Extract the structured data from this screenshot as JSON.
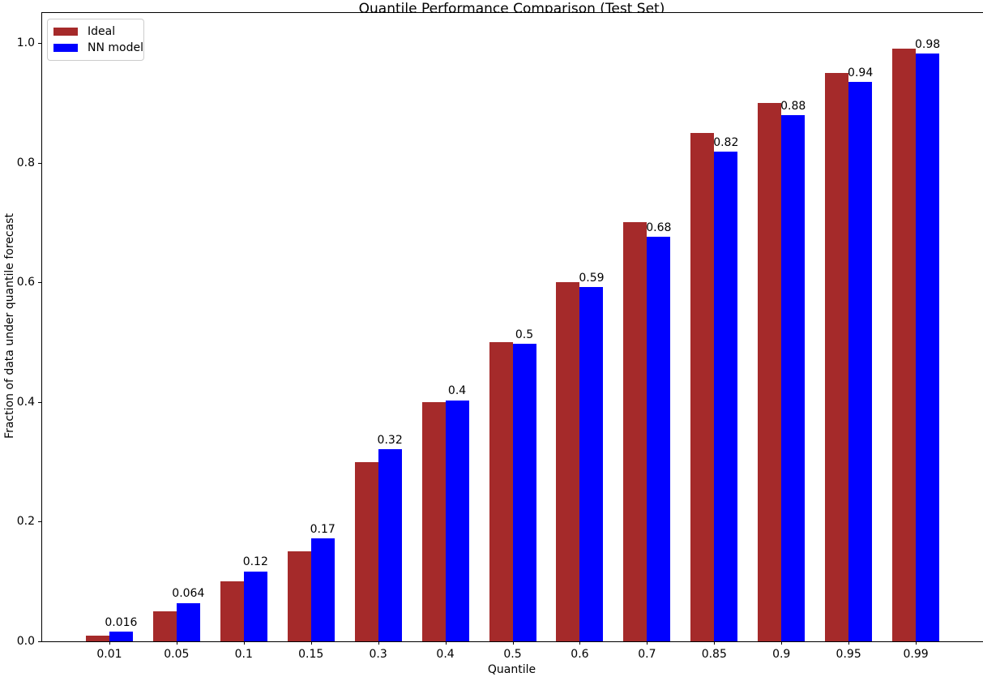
{
  "chart_data": {
    "type": "bar",
    "title": "Quantile Performance Comparison (Test Set)",
    "xlabel": "Quantile",
    "ylabel": "Fraction of data under quantile forecast",
    "categories": [
      "0.01",
      "0.05",
      "0.1",
      "0.15",
      "0.3",
      "0.4",
      "0.5",
      "0.6",
      "0.7",
      "0.85",
      "0.9",
      "0.95",
      "0.99"
    ],
    "series": [
      {
        "name": "Ideal",
        "color": "#A52A2A",
        "values": [
          0.01,
          0.05,
          0.1,
          0.15,
          0.3,
          0.4,
          0.5,
          0.6,
          0.7,
          0.85,
          0.9,
          0.95,
          0.99
        ]
      },
      {
        "name": "NN model",
        "color": "#0000FF",
        "values": [
          0.016,
          0.064,
          0.117,
          0.172,
          0.321,
          0.403,
          0.497,
          0.592,
          0.676,
          0.818,
          0.879,
          0.935,
          0.982
        ],
        "labels": [
          "0.016",
          "0.064",
          "0.12",
          "0.17",
          "0.32",
          "0.4",
          "0.5",
          "0.59",
          "0.68",
          "0.82",
          "0.88",
          "0.94",
          "0.98"
        ]
      }
    ],
    "yticks": [
      "0.0",
      "0.2",
      "0.4",
      "0.6",
      "0.8",
      "1.0"
    ],
    "ylim": [
      0,
      1.05
    ],
    "grid": false,
    "legend_position": "upper-left"
  }
}
